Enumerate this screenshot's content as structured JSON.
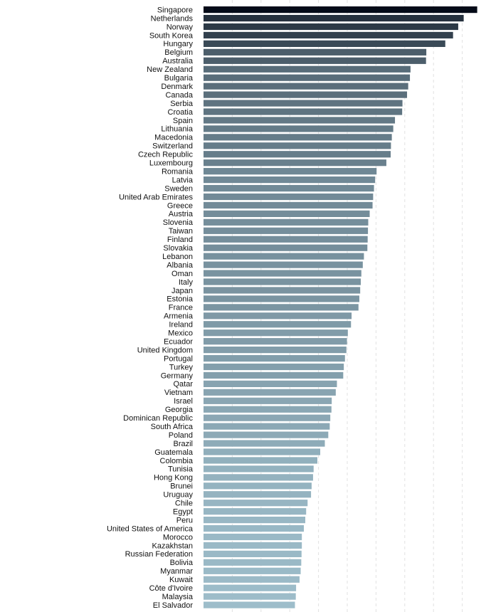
{
  "chart_data": {
    "type": "bar",
    "orientation": "horizontal",
    "title": "",
    "xlabel": "",
    "ylabel": "",
    "xlim": [
      0,
      100
    ],
    "grid": true,
    "color_dark": "#050b18",
    "color_light": "#9dbdca",
    "categories": [
      "Singapore",
      "Netherlands",
      "Norway",
      "South Korea",
      "Hungary",
      "Belgium",
      "Australia",
      "New Zealand",
      "Bulgaria",
      "Denmark",
      "Canada",
      "Serbia",
      "Croatia",
      "Spain",
      "Lithuania",
      "Macedonia",
      "Switzerland",
      "Czech Republic",
      "Luxembourg",
      "Romania",
      "Latvia",
      "Sweden",
      "United Arab Emirates",
      "Greece",
      "Austria",
      "Slovenia",
      "Taiwan",
      "Finland",
      "Slovakia",
      "Lebanon",
      "Albania",
      "Oman",
      "Italy",
      "Japan",
      "Estonia",
      "France",
      "Armenia",
      "Ireland",
      "Mexico",
      "Ecuador",
      "United Kingdom",
      "Portugal",
      "Turkey",
      "Germany",
      "Qatar",
      "Vietnam",
      "Israel",
      "Georgia",
      "Dominican Republic",
      "South Africa",
      "Poland",
      "Brazil",
      "Guatemala",
      "Colombia",
      "Tunisia",
      "Hong Kong",
      "Brunei",
      "Uruguay",
      "Chile",
      "Egypt",
      "Peru",
      "United States of America",
      "Morocco",
      "Kazakhstan",
      "Russian Federation",
      "Bolivia",
      "Myanmar",
      "Kuwait",
      "Côte d'Ivoire",
      "Malaysia",
      "El Salvador"
    ],
    "values": [
      95.2,
      90.5,
      88.6,
      86.8,
      84.1,
      77.5,
      77.4,
      72.0,
      71.8,
      71.2,
      70.8,
      69.2,
      69.1,
      66.6,
      66.0,
      65.5,
      65.2,
      65.1,
      63.6,
      60.2,
      59.7,
      59.3,
      59.0,
      58.8,
      57.8,
      57.3,
      57.2,
      57.1,
      57.0,
      55.8,
      55.4,
      54.9,
      54.7,
      54.5,
      54.2,
      53.9,
      51.5,
      51.3,
      50.2,
      49.9,
      49.7,
      49.2,
      48.8,
      48.6,
      46.4,
      46.0,
      44.6,
      44.5,
      44.1,
      43.9,
      43.4,
      42.2,
      40.6,
      39.6,
      38.3,
      38.1,
      37.6,
      37.4,
      36.2,
      35.7,
      35.4,
      34.9,
      34.2,
      34.2,
      34.1,
      34.0,
      33.8,
      33.4,
      32.2,
      32.1,
      31.8
    ]
  }
}
